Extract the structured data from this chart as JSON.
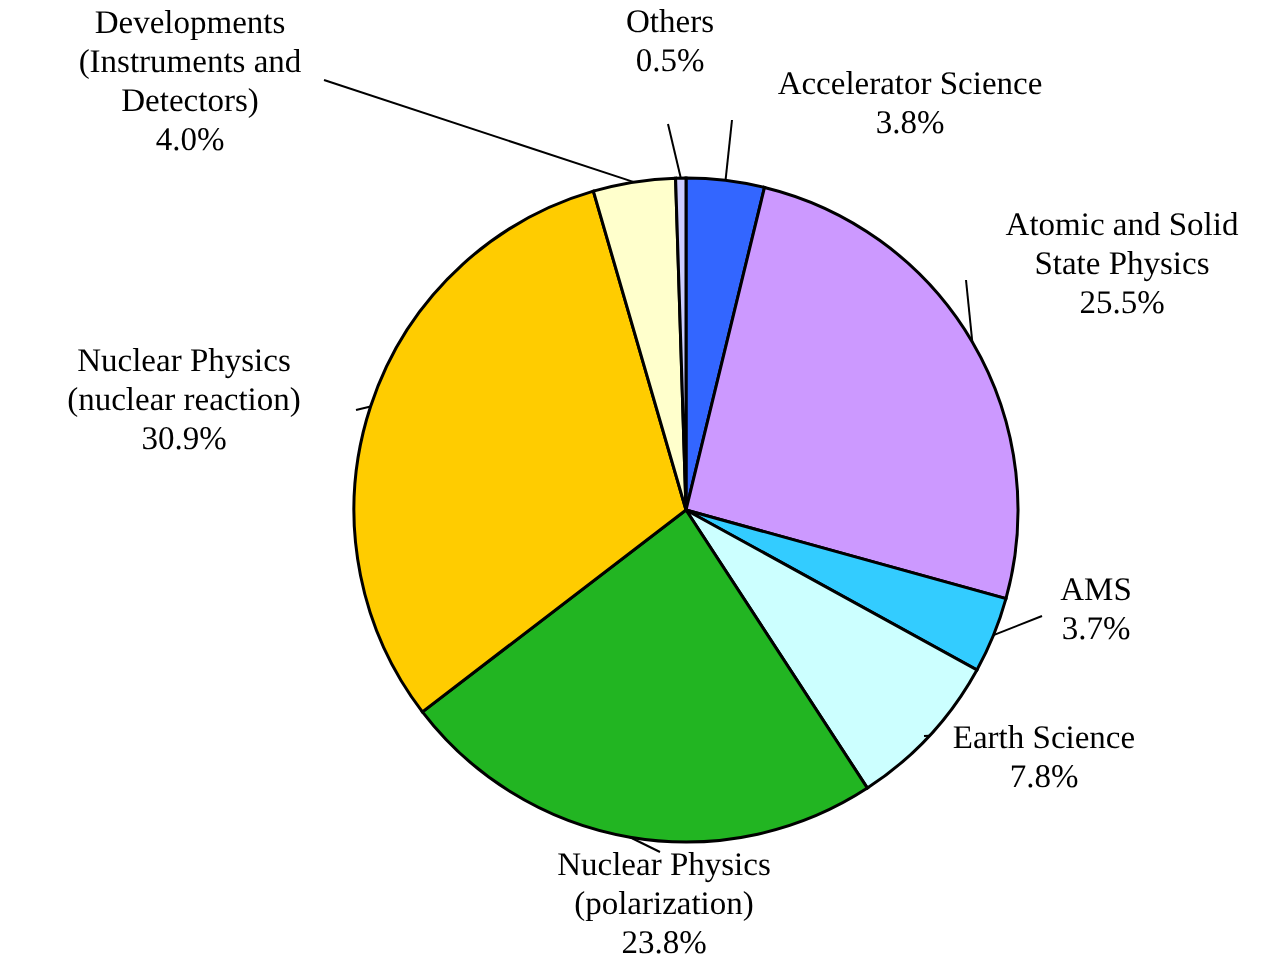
{
  "chart_data": {
    "type": "pie",
    "categories": [
      "Accelerator Science",
      "Atomic and Solid\nState Physics",
      "AMS",
      "Earth Science",
      "Nuclear Physics\n(polarization)",
      "Nuclear Physics\n(nuclear reaction)",
      "Developments\n(Instruments and\nDetectors)",
      "Others"
    ],
    "values": [
      3.8,
      25.5,
      3.7,
      7.8,
      23.8,
      30.9,
      4.0,
      0.5
    ],
    "value_labels": [
      "3.8%",
      "25.5%",
      "3.7%",
      "7.8%",
      "23.8%",
      "30.9%",
      "4.0%",
      "0.5%"
    ],
    "colors": [
      "#3366ff",
      "#cc99ff",
      "#33ccff",
      "#ccffff",
      "#22b522",
      "#ffcc00",
      "#ffffcc",
      "#ccccff"
    ]
  }
}
